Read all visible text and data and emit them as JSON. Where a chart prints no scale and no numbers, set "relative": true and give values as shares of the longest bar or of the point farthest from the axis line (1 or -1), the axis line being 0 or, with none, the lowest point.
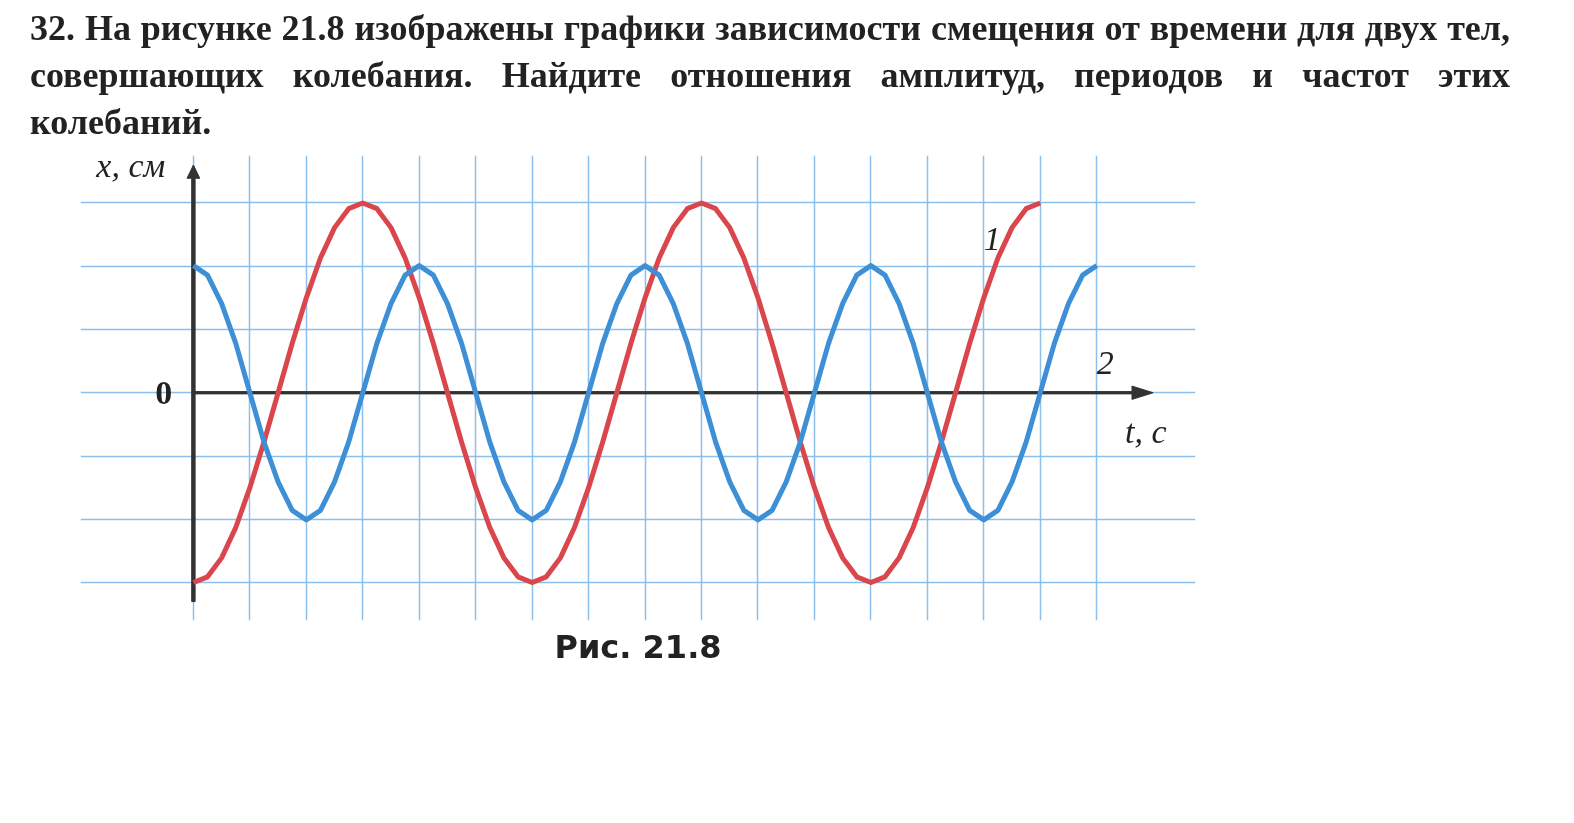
{
  "chart_data": {
    "type": "line",
    "title": "32. На рисунке 21.8 изображены графики зависимости смещения от времени для двух тел, совершающих колебания. Найдите отношения амплитуд, периодов и частот этих колебаний.",
    "xlabel": "t, с",
    "ylabel": "x, см",
    "relative": true,
    "grid": true,
    "marker": "none",
    "line_style": "solid",
    "annotations": [
      "0",
      "Рис. 21.8"
    ],
    "categories": [
      null,
      null,
      null,
      null,
      null,
      null,
      null,
      null,
      null,
      null,
      null,
      null,
      null,
      null,
      null,
      null,
      null,
      null,
      null,
      null,
      null,
      null,
      null,
      null,
      null,
      null,
      null,
      null,
      null,
      null,
      null,
      null,
      null,
      null,
      null,
      null,
      null,
      null,
      null,
      null,
      null,
      null,
      null,
      null,
      null,
      null,
      null,
      null,
      null,
      null,
      null,
      null,
      null,
      null,
      null,
      null,
      null,
      null,
      null,
      null,
      null,
      null,
      null,
      null,
      null
    ],
    "series": [
      {
        "name": "1",
        "color": "#d9464c",
        "values": [
          -1,
          -0.97,
          -0.87,
          -0.71,
          -0.5,
          -0.26,
          0,
          0.26,
          0.5,
          0.71,
          0.87,
          0.97,
          1,
          0.97,
          0.87,
          0.71,
          0.5,
          0.26,
          0,
          -0.26,
          -0.5,
          -0.71,
          -0.87,
          -0.97,
          -1,
          -0.97,
          -0.87,
          -0.71,
          -0.5,
          -0.26,
          0,
          0.26,
          0.5,
          0.71,
          0.87,
          0.97,
          1,
          0.97,
          0.87,
          0.71,
          0.5,
          0.26,
          0,
          -0.26,
          -0.5,
          -0.71,
          -0.87,
          -0.97,
          -1,
          -0.97,
          -0.87,
          -0.71,
          -0.5,
          -0.26,
          0,
          0.26,
          0.5,
          0.71,
          0.87,
          0.97,
          1,
          null,
          null,
          null,
          null
        ]
      },
      {
        "name": "2",
        "color": "#3d8fd6",
        "values": [
          0.67,
          0.62,
          0.47,
          0.26,
          0,
          -0.26,
          -0.47,
          -0.62,
          -0.67,
          -0.62,
          -0.47,
          -0.26,
          0,
          0.26,
          0.47,
          0.62,
          0.67,
          0.62,
          0.47,
          0.26,
          0,
          -0.26,
          -0.47,
          -0.62,
          -0.67,
          -0.62,
          -0.47,
          -0.26,
          0,
          0.26,
          0.47,
          0.62,
          0.67,
          0.62,
          0.47,
          0.26,
          0,
          -0.26,
          -0.47,
          -0.62,
          -0.67,
          -0.62,
          -0.47,
          -0.26,
          0,
          0.26,
          0.47,
          0.62,
          0.67,
          0.62,
          0.47,
          0.26,
          0,
          -0.26,
          -0.47,
          -0.62,
          -0.67,
          -0.62,
          -0.47,
          -0.26,
          0,
          0.26,
          0.47,
          0.62,
          0.67
        ]
      }
    ]
  }
}
